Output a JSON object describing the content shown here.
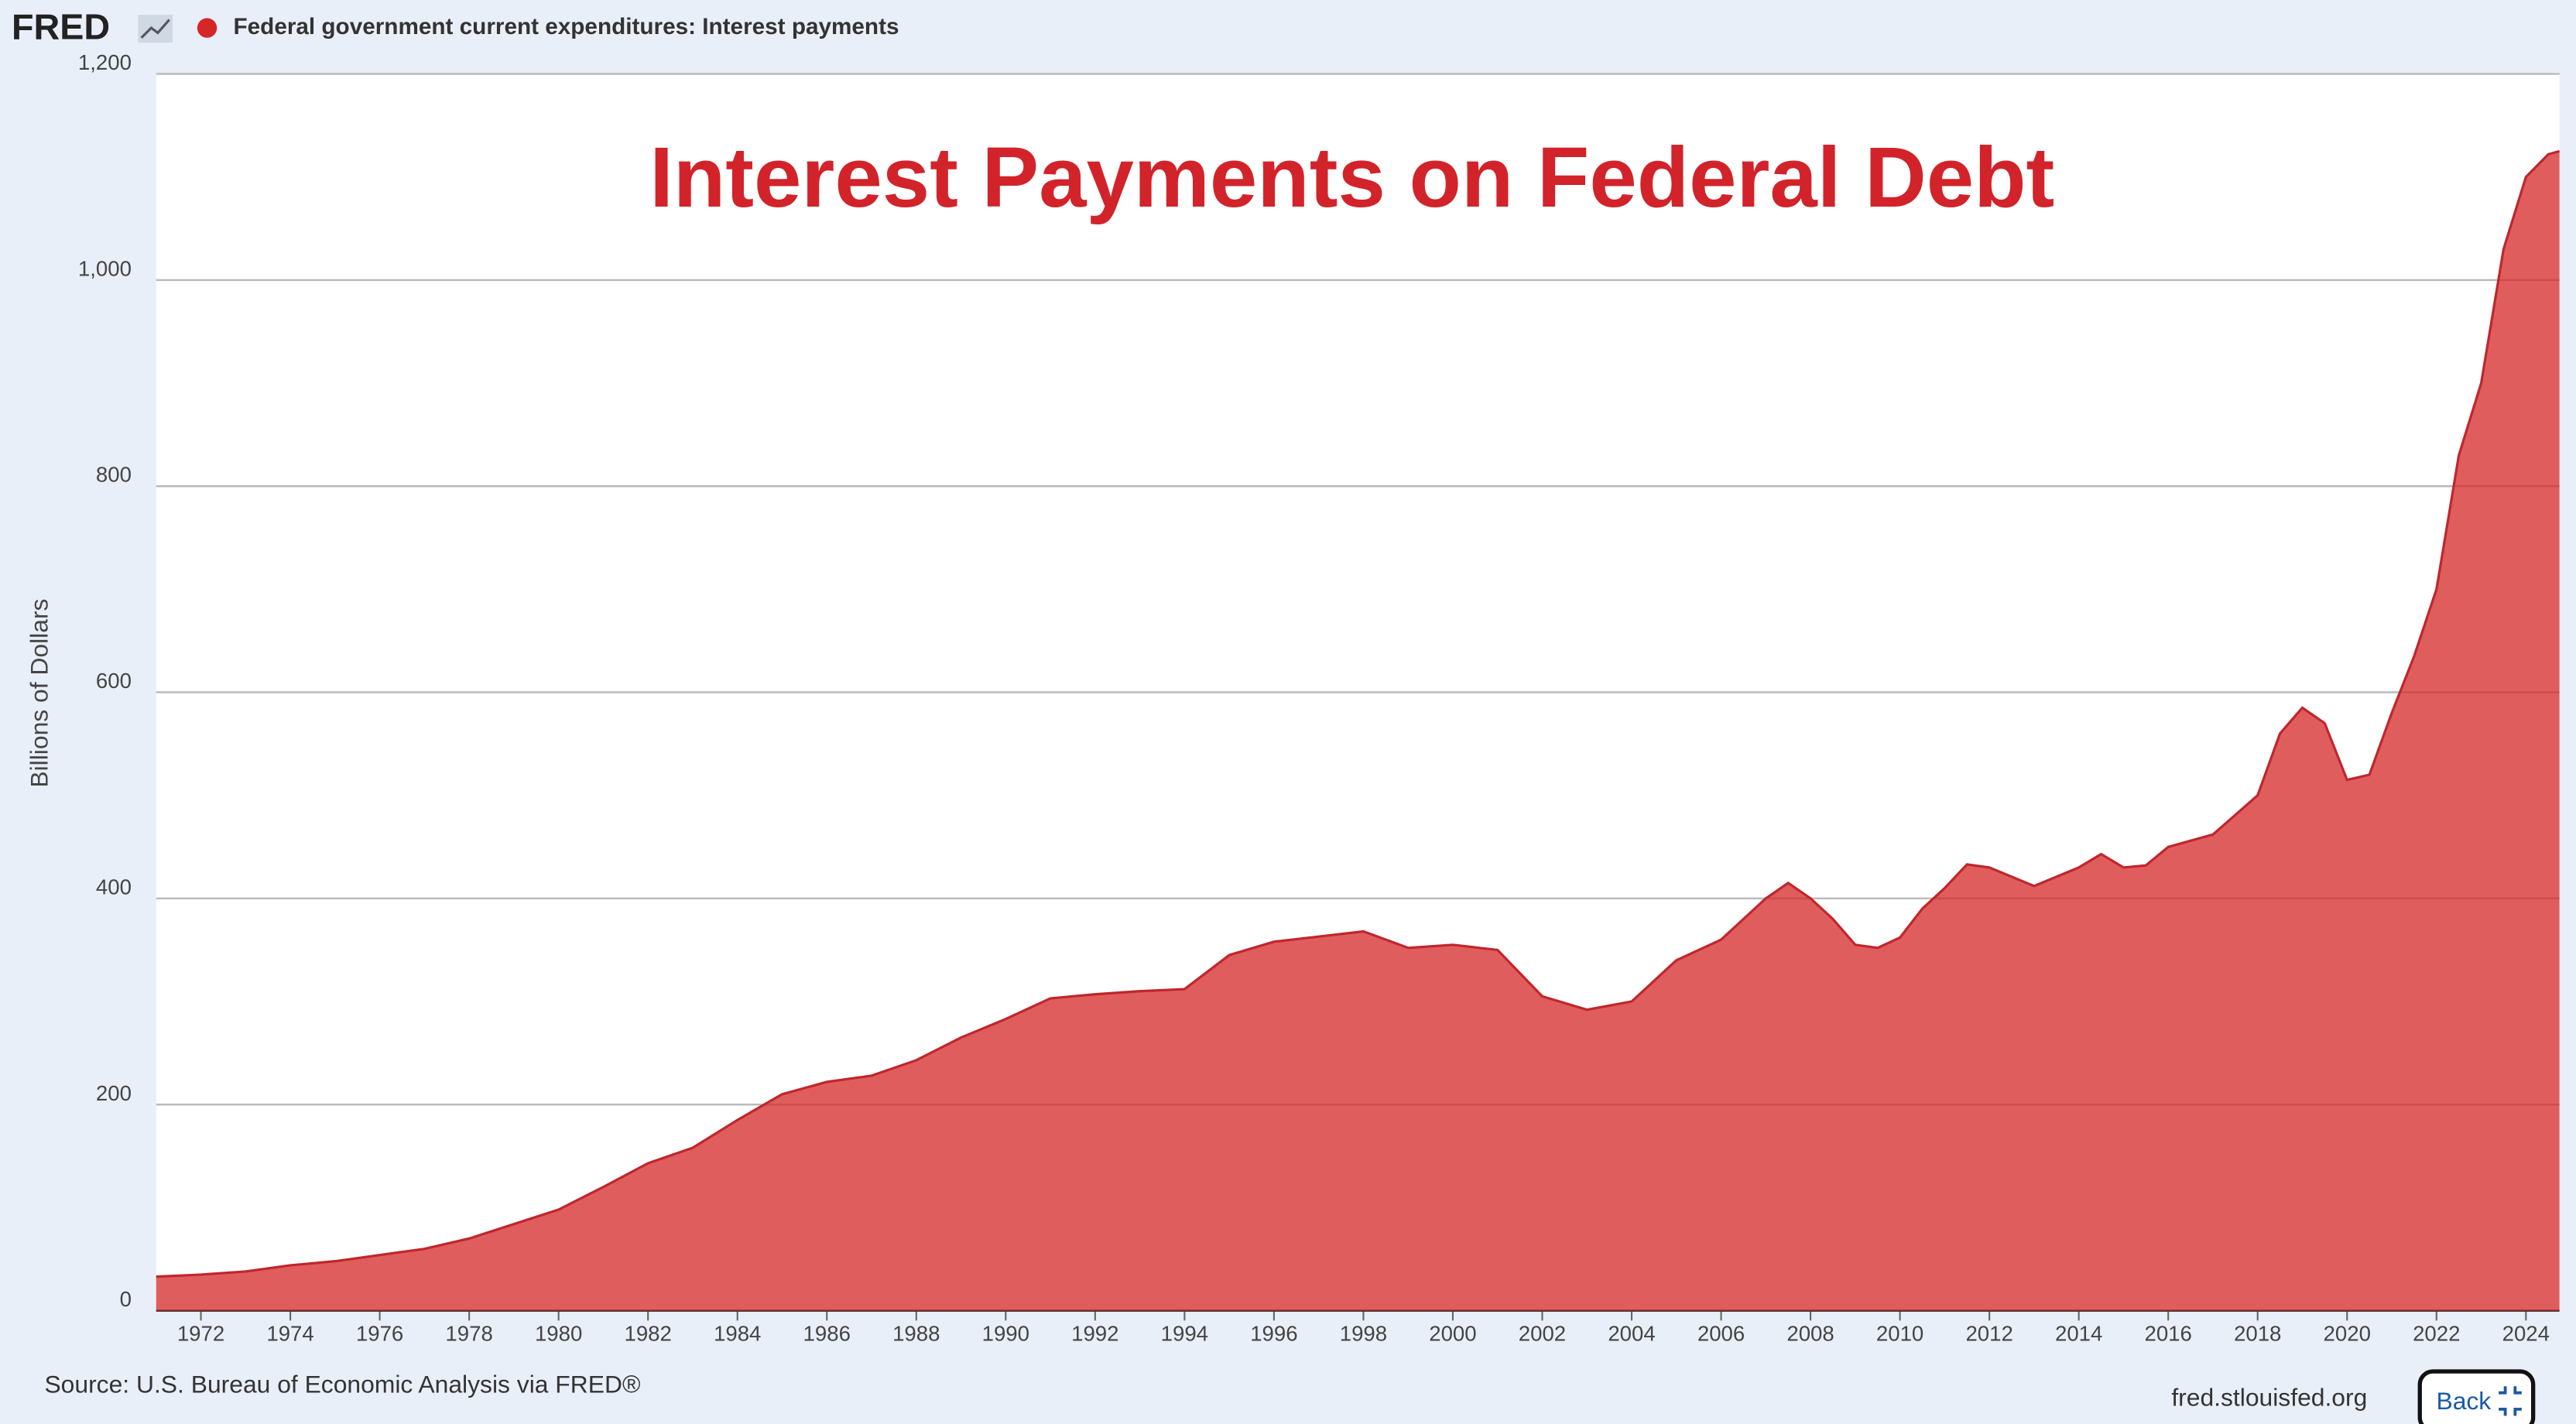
{
  "header": {
    "logo": "FRED"
  },
  "chart_data": {
    "type": "area",
    "title": "Interest Payments on Federal Debt",
    "y_label": "Billions of Dollars",
    "x": [
      1971,
      1972,
      1973,
      1974,
      1975,
      1976,
      1977,
      1978,
      1979,
      1980,
      1981,
      1982,
      1983,
      1984,
      1985,
      1986,
      1987,
      1988,
      1989,
      1990,
      1991,
      1992,
      1993,
      1994,
      1995,
      1996,
      1997,
      1998,
      1999,
      2000,
      2001,
      2002,
      2003,
      2004,
      2005,
      2006,
      2007,
      2007.5,
      2008,
      2008.5,
      2009,
      2009.5,
      2010,
      2010.5,
      2011,
      2011.5,
      2012,
      2013,
      2014,
      2014.5,
      2015,
      2015.5,
      2016,
      2017,
      2018,
      2018.5,
      2019,
      2019.5,
      2020,
      2020.5,
      2021,
      2021.5,
      2022,
      2022.5,
      2023,
      2023.5,
      2024,
      2024.5,
      2024.75
    ],
    "series": [
      {
        "name": "Federal government current expenditures: Interest payments",
        "color": "#d62728",
        "values": [
          33,
          35,
          38,
          44,
          48,
          54,
          60,
          70,
          84,
          98,
          120,
          143,
          158,
          185,
          210,
          222,
          228,
          243,
          265,
          283,
          303,
          307,
          310,
          312,
          345,
          358,
          363,
          368,
          352,
          355,
          350,
          305,
          292,
          300,
          340,
          360,
          400,
          415,
          400,
          380,
          355,
          352,
          362,
          390,
          410,
          433,
          430,
          412,
          430,
          443,
          430,
          432,
          450,
          462,
          500,
          560,
          585,
          570,
          515,
          520,
          580,
          635,
          700,
          830,
          900,
          1030,
          1100,
          1122,
          1125
        ]
      }
    ],
    "xlim": [
      1971,
      2024.75
    ],
    "xticks": [
      1972,
      1974,
      1976,
      1978,
      1980,
      1982,
      1984,
      1986,
      1988,
      1990,
      1992,
      1994,
      1996,
      1998,
      2000,
      2002,
      2004,
      2006,
      2008,
      2010,
      2012,
      2014,
      2016,
      2018,
      2020,
      2022,
      2024
    ],
    "ylim": [
      0,
      1200
    ],
    "yticks": [
      0,
      200,
      400,
      600,
      800,
      {
        "value": 1000,
        "label": "1,000"
      },
      {
        "value": 1200,
        "label": "1,200"
      }
    ],
    "grid": true
  },
  "footer": {
    "source": "Source: U.S. Bureau of Economic Analysis via FRED®",
    "site": "fred.stlouisfed.org",
    "back": "Back"
  }
}
